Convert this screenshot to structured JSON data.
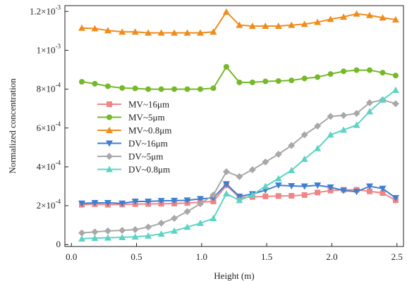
{
  "chart_data": {
    "type": "line",
    "xlabel": "Height (m)",
    "ylabel": "Normalized concentration",
    "xlim": [
      -0.05,
      2.55
    ],
    "ylim": [
      -1e-05,
      0.00123
    ],
    "xticks": [
      {
        "value": 0.0,
        "label": "0.0"
      },
      {
        "value": 0.5,
        "label": "0.5"
      },
      {
        "value": 1.0,
        "label": "1.0"
      },
      {
        "value": 1.5,
        "label": "1.5"
      },
      {
        "value": 2.0,
        "label": "2.0"
      },
      {
        "value": 2.5,
        "label": "2.5"
      }
    ],
    "yticks": [
      {
        "value": 0,
        "base": "0",
        "exp": ""
      },
      {
        "value": 0.0002,
        "base": "2×10",
        "exp": "-4"
      },
      {
        "value": 0.0004,
        "base": "4×10",
        "exp": "-4"
      },
      {
        "value": 0.0006,
        "base": "6×10",
        "exp": "-4"
      },
      {
        "value": 0.0008,
        "base": "8×10",
        "exp": "-4"
      },
      {
        "value": 0.001,
        "base": "1×10",
        "exp": "-3"
      },
      {
        "value": 0.0012,
        "base": "1.2×10",
        "exp": "-3"
      }
    ],
    "legend_position": "middle-left",
    "x": [
      0.08,
      0.18,
      0.28,
      0.39,
      0.49,
      0.59,
      0.69,
      0.79,
      0.89,
      0.99,
      1.09,
      1.19,
      1.29,
      1.39,
      1.49,
      1.59,
      1.69,
      1.79,
      1.89,
      1.99,
      2.09,
      2.19,
      2.29,
      2.39,
      2.49
    ],
    "series": [
      {
        "name": "MV~16μm",
        "color": "#f08585",
        "marker": "square",
        "values": [
          0.000205,
          0.000208,
          0.000205,
          0.000206,
          0.000208,
          0.000209,
          0.00021,
          0.000211,
          0.000214,
          0.000218,
          0.000222,
          0.000305,
          0.000242,
          0.000245,
          0.000248,
          0.00025,
          0.000251,
          0.000255,
          0.000268,
          0.000278,
          0.000282,
          0.000282,
          0.000274,
          0.000265,
          0.000228
        ]
      },
      {
        "name": "MV~5μm",
        "color": "#76b82a",
        "marker": "circle",
        "values": [
          0.000838,
          0.000828,
          0.000815,
          0.000806,
          0.000804,
          0.0008,
          0.0008,
          0.0008,
          0.0008,
          0.0008,
          0.000805,
          0.000915,
          0.000835,
          0.000835,
          0.00084,
          0.000842,
          0.000845,
          0.000855,
          0.000862,
          0.000878,
          0.000892,
          0.000898,
          0.000898,
          0.000885,
          0.00087
        ]
      },
      {
        "name": "MV~0.8μm",
        "color": "#f08c1c",
        "marker": "triangle-up",
        "values": [
          0.001115,
          0.001112,
          0.001102,
          0.001095,
          0.001095,
          0.00109,
          0.00109,
          0.00109,
          0.00109,
          0.00109,
          0.001095,
          0.001198,
          0.00113,
          0.001125,
          0.001125,
          0.001125,
          0.00113,
          0.001135,
          0.001145,
          0.00116,
          0.001172,
          0.001188,
          0.00118,
          0.001168,
          0.001158
        ]
      },
      {
        "name": "DV~16μm",
        "color": "#3f7fd0",
        "marker": "triangle-down",
        "values": [
          0.000212,
          0.000215,
          0.000215,
          0.000212,
          0.000222,
          0.000222,
          0.000225,
          0.000226,
          0.000228,
          0.000235,
          0.00024,
          0.000312,
          0.000248,
          0.00026,
          0.00028,
          0.000305,
          0.000302,
          0.0003,
          0.000305,
          0.000295,
          0.000278,
          0.000272,
          0.0003,
          0.000288,
          0.00024
        ]
      },
      {
        "name": "DV~5μm",
        "color": "#a8a8a8",
        "marker": "diamond",
        "values": [
          6e-05,
          6.5e-05,
          7e-05,
          7.3e-05,
          7.7e-05,
          9e-05,
          0.00011,
          0.000135,
          0.00017,
          0.00021,
          0.000255,
          0.000375,
          0.00035,
          0.000385,
          0.000425,
          0.000465,
          0.00051,
          0.000565,
          0.00061,
          0.00066,
          0.000665,
          0.000675,
          0.00073,
          0.000745,
          0.000725
        ]
      },
      {
        "name": "DV~0.8μm",
        "color": "#5ed3c4",
        "marker": "triangle-up",
        "values": [
          3e-05,
          3.3e-05,
          3.5e-05,
          3.7e-05,
          4e-05,
          4.5e-05,
          5.5e-05,
          7e-05,
          9e-05,
          0.00011,
          0.000135,
          0.000262,
          0.000228,
          0.000255,
          0.0003,
          0.00034,
          0.000382,
          0.00044,
          0.000495,
          0.000565,
          0.00059,
          0.000615,
          0.000685,
          0.000745,
          0.000795
        ]
      }
    ]
  }
}
